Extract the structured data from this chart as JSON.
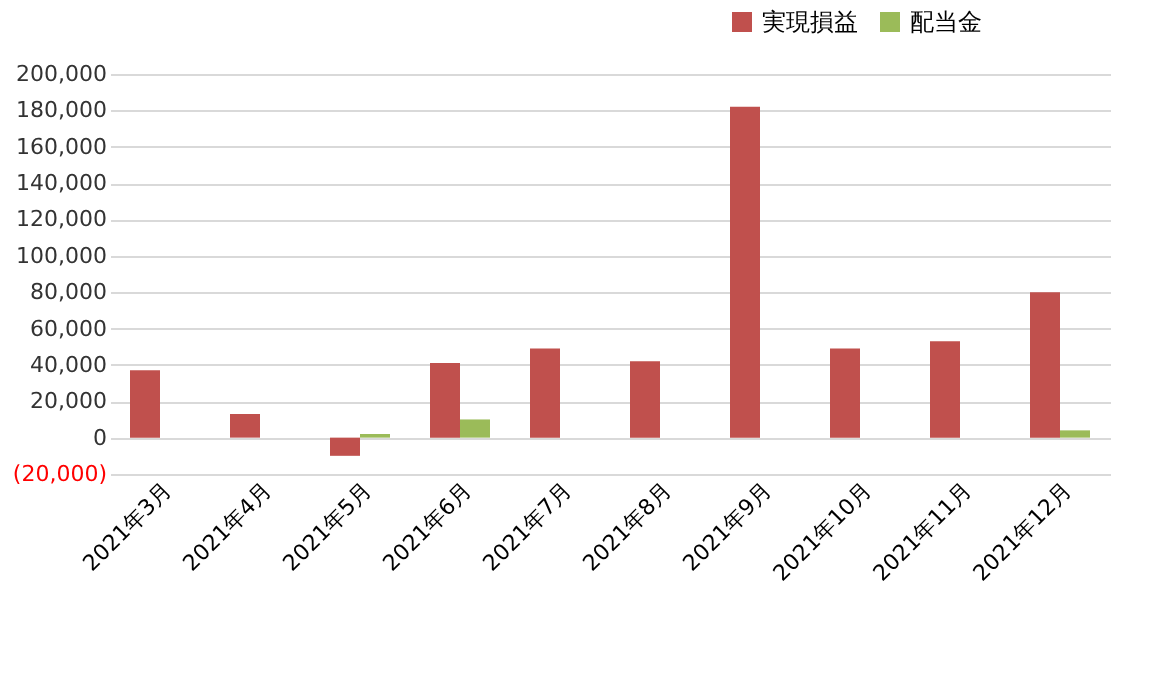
{
  "chart_data": {
    "type": "bar",
    "categories": [
      "2021年3月",
      "2021年4月",
      "2021年5月",
      "2021年6月",
      "2021年7月",
      "2021年8月",
      "2021年9月",
      "2021年10月",
      "2021年11月",
      "2021年12月"
    ],
    "series": [
      {
        "name": "実現損益",
        "color": "#c0504d",
        "values": [
          37000,
          13000,
          -10000,
          41000,
          49000,
          42000,
          182000,
          49000,
          53000,
          80000
        ]
      },
      {
        "name": "配当金",
        "color": "#9bbb59",
        "values": [
          null,
          null,
          2000,
          10000,
          null,
          null,
          null,
          null,
          null,
          4000
        ]
      }
    ],
    "ylim": [
      -20000,
      200000
    ],
    "yticks": [
      {
        "value": -20000,
        "label": "(20,000)"
      },
      0,
      {
        "value": 20000,
        "label": "20,000"
      },
      {
        "value": 40000,
        "label": "40,000"
      },
      {
        "value": 60000,
        "label": "60,000"
      },
      {
        "value": 80000,
        "label": "80,000"
      },
      {
        "value": 100000,
        "label": "100,000"
      },
      {
        "value": 120000,
        "label": "120,000"
      },
      {
        "value": 140000,
        "label": "140,000"
      },
      {
        "value": 160000,
        "label": "160,000"
      },
      {
        "value": 180000,
        "label": "180,000"
      },
      {
        "value": 200000,
        "label": "200,000"
      }
    ],
    "grid": "y",
    "legend": "top right"
  }
}
